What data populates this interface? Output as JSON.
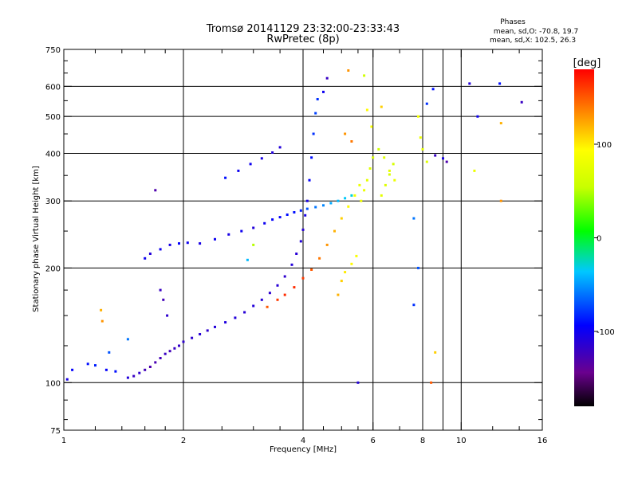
{
  "chart_data": {
    "type": "scatter",
    "title": "Tromsø 20141129 23:32:00-23:33:43",
    "subtitle": "RwPretec (8p)",
    "xlabel": "Frequency [MHz]",
    "ylabel": "Stationary phase Virtual Height [km]",
    "x_scale": "log",
    "y_scale": "log",
    "xlim": [
      1,
      16
    ],
    "ylim": [
      75,
      750
    ],
    "x_ticks": [
      1,
      2,
      4,
      6,
      8,
      10,
      16
    ],
    "x_tick_labels": [
      "1",
      "2",
      "4",
      "6",
      "8",
      "10",
      "16"
    ],
    "x_minor_ticks": [
      1.2,
      1.4,
      1.6,
      1.8,
      2.5,
      3,
      3.5,
      4.5,
      5,
      5.5,
      7,
      9,
      12,
      14
    ],
    "x_grid": [
      2,
      4,
      6,
      8,
      9,
      10
    ],
    "y_ticks": [
      75,
      100,
      200,
      300,
      400,
      500,
      600,
      750
    ],
    "y_tick_labels": [
      "75",
      "100",
      "200",
      "300",
      "400",
      "500",
      "600",
      "750"
    ],
    "y_grid": [
      100,
      200,
      300,
      400,
      500,
      600
    ],
    "grid": true,
    "phase_info": {
      "title": "Phases",
      "line1": "mean, sd,O: -70.8, 19.7",
      "line2": "mean, sd,X: 102.5, 26.3"
    },
    "colorbar": {
      "label": "[deg]",
      "min": -180,
      "max": 180,
      "ticks": [
        100,
        0,
        -100
      ],
      "tick_labels": [
        "100",
        "0",
        "-100"
      ],
      "colormap": "rainbow"
    },
    "series": [
      {
        "points": [
          [
            1.02,
            102,
            -105
          ],
          [
            1.05,
            108,
            -95
          ],
          [
            1.15,
            112,
            -90
          ],
          [
            1.2,
            111,
            -85
          ],
          [
            1.28,
            108,
            -95
          ],
          [
            1.35,
            107,
            -90
          ],
          [
            1.45,
            103,
            -110
          ],
          [
            1.5,
            104,
            -120
          ],
          [
            1.55,
            106,
            -115
          ],
          [
            1.6,
            108,
            -125
          ],
          [
            1.65,
            110,
            -130
          ],
          [
            1.7,
            113,
            -128
          ],
          [
            1.75,
            116,
            -125
          ],
          [
            1.8,
            119,
            -120
          ],
          [
            1.85,
            121,
            -125
          ],
          [
            1.9,
            123,
            -120
          ],
          [
            1.95,
            125,
            -118
          ],
          [
            2.0,
            128,
            -115
          ],
          [
            2.1,
            131,
            -115
          ],
          [
            2.2,
            134,
            -112
          ],
          [
            2.3,
            137,
            -115
          ],
          [
            2.4,
            140,
            -110
          ],
          [
            2.55,
            144,
            -108
          ],
          [
            2.7,
            148,
            -110
          ],
          [
            2.85,
            153,
            -112
          ],
          [
            3.0,
            159,
            -110
          ],
          [
            3.15,
            165,
            -112
          ],
          [
            3.3,
            172,
            -115
          ],
          [
            3.45,
            180,
            -112
          ],
          [
            3.6,
            190,
            -115
          ],
          [
            3.75,
            204,
            -110
          ],
          [
            3.85,
            218,
            -112
          ],
          [
            3.95,
            235,
            -110
          ],
          [
            4.0,
            252,
            -112
          ],
          [
            4.05,
            275,
            -105
          ],
          [
            4.1,
            300,
            -105
          ],
          [
            4.15,
            340,
            -95
          ],
          [
            4.2,
            390,
            -90
          ],
          [
            4.25,
            450,
            -80
          ],
          [
            4.3,
            510,
            -75
          ],
          [
            4.35,
            555,
            -80
          ],
          [
            4.5,
            580,
            -100
          ],
          [
            4.6,
            630,
            -120
          ],
          [
            1.75,
            175,
            -120
          ],
          [
            1.78,
            165,
            -125
          ],
          [
            1.82,
            150,
            -115
          ],
          [
            1.7,
            320,
            -130
          ],
          [
            1.6,
            212,
            -100
          ],
          [
            1.65,
            218,
            -110
          ],
          [
            1.75,
            224,
            -100
          ],
          [
            1.85,
            230,
            -105
          ],
          [
            1.95,
            232,
            -95
          ],
          [
            2.05,
            233,
            -100
          ],
          [
            2.2,
            232,
            -105
          ],
          [
            2.4,
            238,
            -100
          ],
          [
            2.6,
            245,
            -105
          ],
          [
            2.8,
            250,
            -100
          ],
          [
            3.0,
            255,
            -110
          ],
          [
            3.2,
            262,
            -100
          ],
          [
            3.35,
            268,
            -95
          ],
          [
            3.5,
            272,
            -95
          ],
          [
            3.65,
            276,
            -90
          ],
          [
            3.8,
            280,
            -90
          ],
          [
            3.95,
            283,
            -85
          ],
          [
            4.1,
            286,
            -70
          ],
          [
            4.3,
            289,
            -60
          ],
          [
            4.5,
            292,
            -55
          ],
          [
            4.7,
            296,
            -45
          ],
          [
            4.9,
            300,
            -40
          ],
          [
            5.1,
            305,
            -35
          ],
          [
            5.3,
            310,
            -30
          ],
          [
            2.55,
            345,
            -90
          ],
          [
            2.75,
            360,
            -100
          ],
          [
            2.95,
            375,
            -100
          ],
          [
            3.15,
            388,
            -105
          ],
          [
            3.35,
            402,
            -110
          ],
          [
            3.5,
            415,
            -110
          ],
          [
            3.25,
            158,
            150
          ],
          [
            3.45,
            165,
            160
          ],
          [
            3.6,
            170,
            165
          ],
          [
            3.8,
            178,
            165
          ],
          [
            4.0,
            188,
            160
          ],
          [
            4.2,
            198,
            150
          ],
          [
            4.4,
            212,
            140
          ],
          [
            4.6,
            230,
            130
          ],
          [
            4.8,
            250,
            120
          ],
          [
            5.0,
            270,
            110
          ],
          [
            5.2,
            290,
            95
          ],
          [
            5.4,
            310,
            85
          ],
          [
            5.55,
            330,
            80
          ],
          [
            4.9,
            170,
            120
          ],
          [
            5.0,
            185,
            110
          ],
          [
            5.1,
            195,
            100
          ],
          [
            5.3,
            205,
            95
          ],
          [
            5.45,
            215,
            90
          ],
          [
            5.6,
            300,
            85
          ],
          [
            5.7,
            320,
            80
          ],
          [
            5.8,
            340,
            75
          ],
          [
            5.9,
            365,
            70
          ],
          [
            6.0,
            390,
            65
          ],
          [
            6.2,
            410,
            60
          ],
          [
            6.4,
            390,
            70
          ],
          [
            6.6,
            360,
            75
          ],
          [
            6.8,
            340,
            80
          ],
          [
            6.3,
            310,
            75
          ],
          [
            6.45,
            330,
            70
          ],
          [
            6.6,
            352,
            65
          ],
          [
            6.75,
            375,
            65
          ],
          [
            5.8,
            520,
            95
          ],
          [
            5.95,
            470,
            90
          ],
          [
            6.3,
            530,
            110
          ],
          [
            7.8,
            500,
            85
          ],
          [
            7.9,
            440,
            80
          ],
          [
            8.0,
            410,
            75
          ],
          [
            8.2,
            380,
            70
          ],
          [
            8.6,
            395,
            -120
          ],
          [
            9.0,
            388,
            -105
          ],
          [
            9.2,
            380,
            -130
          ],
          [
            7.6,
            270,
            -60
          ],
          [
            7.8,
            200,
            -70
          ],
          [
            7.6,
            160,
            -80
          ],
          [
            8.2,
            540,
            -80
          ],
          [
            8.5,
            590,
            -90
          ],
          [
            10.5,
            610,
            -110
          ],
          [
            12.5,
            610,
            -90
          ],
          [
            14.2,
            545,
            -120
          ],
          [
            11.0,
            500,
            -100
          ],
          [
            10.8,
            360,
            80
          ],
          [
            12.6,
            480,
            120
          ],
          [
            12.6,
            300,
            130
          ],
          [
            8.6,
            120,
            110
          ],
          [
            8.4,
            100,
            150
          ],
          [
            5.5,
            100,
            -110
          ],
          [
            1.24,
            155,
            120
          ],
          [
            1.25,
            145,
            130
          ],
          [
            1.3,
            120,
            -70
          ],
          [
            1.45,
            130,
            -60
          ],
          [
            2.9,
            210,
            -40
          ],
          [
            3.0,
            230,
            50
          ],
          [
            5.1,
            450,
            130
          ],
          [
            5.3,
            430,
            140
          ],
          [
            5.7,
            640,
            60
          ],
          [
            5.2,
            660,
            130
          ]
        ]
      }
    ]
  }
}
